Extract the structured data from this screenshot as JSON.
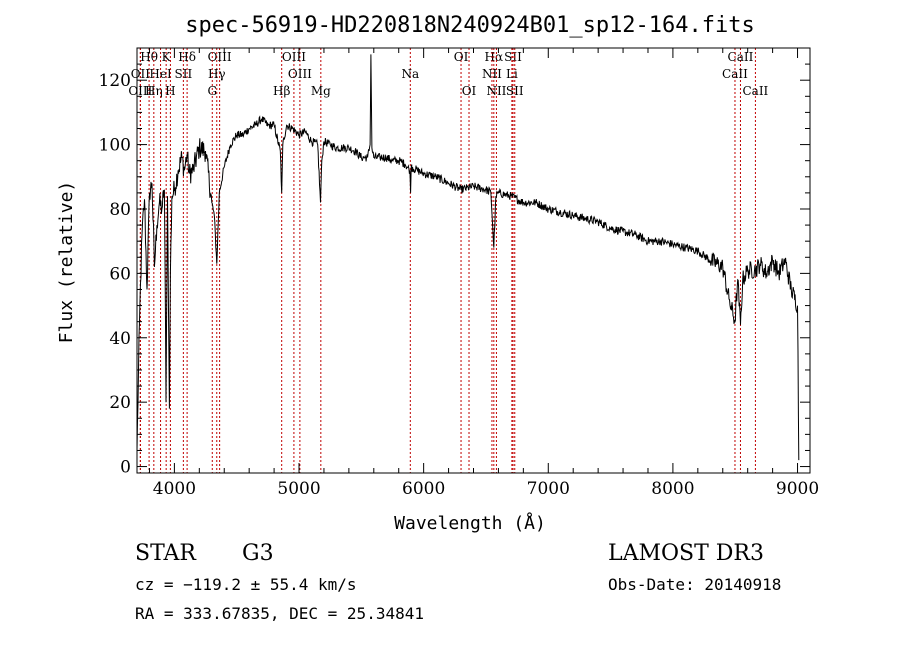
{
  "chart_data": {
    "type": "line",
    "title": "spec-56919-HD220818N240924B01_sp12-164.fits",
    "xlabel": "Wavelength (Å)",
    "ylabel": "Flux (relative)",
    "xlim": [
      3700,
      9100
    ],
    "ylim": [
      -2,
      130
    ],
    "xticks": [
      4000,
      5000,
      6000,
      7000,
      8000,
      9000
    ],
    "yticks": [
      0,
      20,
      40,
      60,
      80,
      100,
      120
    ],
    "grid": false,
    "line_color": "#000000",
    "marker_color": "#c00000",
    "spectrum": {
      "name": "flux",
      "x": [
        3700,
        3720,
        3740,
        3760,
        3780,
        3800,
        3820,
        3840,
        3860,
        3880,
        3900,
        3920,
        3933,
        3945,
        3960,
        3968,
        3980,
        4000,
        4030,
        4060,
        4080,
        4101,
        4120,
        4150,
        4200,
        4250,
        4300,
        4320,
        4340,
        4360,
        4400,
        4450,
        4500,
        4550,
        4600,
        4650,
        4700,
        4750,
        4800,
        4850,
        4861,
        4870,
        4900,
        4950,
        5000,
        5050,
        5100,
        5150,
        5172,
        5183,
        5200,
        5250,
        5300,
        5350,
        5400,
        5450,
        5500,
        5550,
        5570,
        5577,
        5585,
        5600,
        5650,
        5700,
        5750,
        5800,
        5850,
        5890,
        5895,
        5900,
        5950,
        6000,
        6100,
        6200,
        6300,
        6400,
        6500,
        6540,
        6563,
        6580,
        6600,
        6700,
        6800,
        6900,
        7000,
        7100,
        7200,
        7300,
        7400,
        7500,
        7600,
        7700,
        7800,
        7900,
        8000,
        8100,
        8200,
        8300,
        8400,
        8450,
        8498,
        8520,
        8542,
        8560,
        8600,
        8662,
        8700,
        8750,
        8800,
        8850,
        8900,
        8950,
        9000,
        9010
      ],
      "values": [
        5,
        45,
        72,
        83,
        55,
        85,
        88,
        62,
        75,
        82,
        80,
        86,
        20,
        84,
        18,
        60,
        84,
        86,
        92,
        96,
        92,
        97,
        91,
        92,
        99,
        98,
        82,
        78,
        63,
        85,
        93,
        100,
        103,
        103,
        105,
        106,
        108,
        106,
        106,
        98,
        85,
        100,
        106,
        105,
        103,
        104,
        101,
        100,
        82,
        95,
        101,
        100,
        99,
        99,
        99,
        98,
        96,
        96,
        100,
        128,
        99,
        96,
        96,
        96,
        95,
        95,
        94,
        92,
        85,
        93,
        92,
        91,
        90,
        88,
        86,
        87,
        86,
        85,
        68,
        84,
        85,
        84,
        82,
        82,
        80,
        79,
        78,
        77,
        76,
        74,
        73,
        72,
        70,
        70,
        69,
        68,
        67,
        64,
        62,
        52,
        45,
        58,
        44,
        58,
        61,
        61,
        63,
        60,
        64,
        60,
        64,
        55,
        50,
        2
      ]
    },
    "line_markers": [
      {
        "label": "Hθ",
        "x": 3797,
        "row": 1
      },
      {
        "label": "OII",
        "x": 3727,
        "row": 2
      },
      {
        "label": "OIII",
        "x": 3727,
        "row": 3
      },
      {
        "label": "Hη",
        "x": 3835,
        "row": 3
      },
      {
        "label": "HeI",
        "x": 3889,
        "row": 2
      },
      {
        "label": "K",
        "x": 3934,
        "row": 1
      },
      {
        "label": "SII",
        "x": 4072,
        "row": 2
      },
      {
        "label": "H",
        "x": 3968,
        "row": 3
      },
      {
        "label": "Hδ",
        "x": 4102,
        "row": 1
      },
      {
        "label": "OIII",
        "x": 4363,
        "row": 1
      },
      {
        "label": "Hγ",
        "x": 4340,
        "row": 2
      },
      {
        "label": "G",
        "x": 4304,
        "row": 3
      },
      {
        "label": "Hβ",
        "x": 4861,
        "row": 3
      },
      {
        "label": "OIII",
        "x": 4959,
        "row": 1
      },
      {
        "label": "OIII",
        "x": 5007,
        "row": 2
      },
      {
        "label": "Mg",
        "x": 5175,
        "row": 3
      },
      {
        "label": "Na",
        "x": 5893,
        "row": 2
      },
      {
        "label": "OI",
        "x": 6300,
        "row": 1
      },
      {
        "label": "OI",
        "x": 6364,
        "row": 3
      },
      {
        "label": "Hα",
        "x": 6563,
        "row": 1
      },
      {
        "label": "NII",
        "x": 6548,
        "row": 2
      },
      {
        "label": "NII",
        "x": 6584,
        "row": 3
      },
      {
        "label": "SII",
        "x": 6717,
        "row": 1
      },
      {
        "label": "Li",
        "x": 6708,
        "row": 2
      },
      {
        "label": "SII",
        "x": 6731,
        "row": 3
      },
      {
        "label": "CaII",
        "x": 8542,
        "row": 1
      },
      {
        "label": "CaII",
        "x": 8498,
        "row": 2
      },
      {
        "label": "CaII",
        "x": 8662,
        "row": 3
      }
    ]
  },
  "info": {
    "object_class": "STAR",
    "subclass": "G3",
    "survey": "LAMOST DR3",
    "cz": "cz = −119.2 ± 55.4 km/s",
    "obs_date": "Obs-Date: 20140918",
    "coords": "RA = 333.67835, DEC =  25.34841"
  }
}
